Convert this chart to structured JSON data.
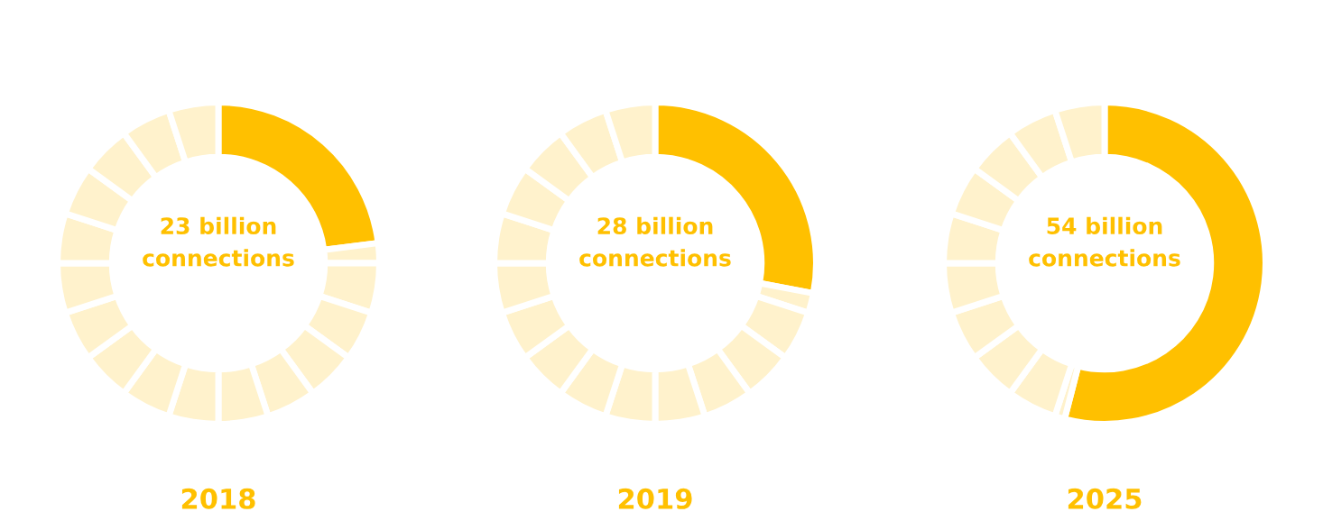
{
  "chart_data": [
    {
      "type": "donut",
      "title": "2018",
      "annotations": [
        "23 billion\nconnections"
      ],
      "categories": [
        null,
        null,
        null,
        null,
        null,
        null,
        null,
        null,
        null,
        null,
        null,
        null,
        null,
        null,
        null,
        null,
        null
      ],
      "values": [
        23,
        2,
        5,
        5,
        5,
        5,
        5,
        5,
        5,
        5,
        5,
        5,
        5,
        5,
        5,
        5,
        5
      ],
      "colors": [
        "#ffc000",
        "#fff2cc",
        "#fff2cc",
        "#fff2cc",
        "#fff2cc",
        "#fff2cc",
        "#fff2cc",
        "#fff2cc",
        "#fff2cc",
        "#fff2cc",
        "#fff2cc",
        "#fff2cc",
        "#fff2cc",
        "#fff2cc",
        "#fff2cc",
        "#fff2cc",
        "#fff2cc"
      ]
    },
    {
      "type": "donut",
      "title": "2019",
      "annotations": [
        "28 billion\nconnections"
      ],
      "categories": [
        null,
        null,
        null,
        null,
        null,
        null,
        null,
        null,
        null,
        null,
        null,
        null,
        null,
        null,
        null,
        null
      ],
      "values": [
        28,
        2,
        5,
        5,
        5,
        5,
        5,
        5,
        5,
        5,
        5,
        5,
        5,
        5,
        5,
        5
      ],
      "colors": [
        "#ffc000",
        "#fff2cc",
        "#fff2cc",
        "#fff2cc",
        "#fff2cc",
        "#fff2cc",
        "#fff2cc",
        "#fff2cc",
        "#fff2cc",
        "#fff2cc",
        "#fff2cc",
        "#fff2cc",
        "#fff2cc",
        "#fff2cc",
        "#fff2cc",
        "#fff2cc"
      ]
    },
    {
      "type": "donut",
      "title": "2025",
      "annotations": [
        "54 billion\nconnections"
      ],
      "categories": [
        null,
        null,
        null,
        null,
        null,
        null,
        null,
        null,
        null,
        null,
        null
      ],
      "values": [
        54,
        1,
        5,
        5,
        5,
        5,
        5,
        5,
        5,
        5,
        5
      ],
      "colors": [
        "#ffc000",
        "#fff2cc",
        "#fff2cc",
        "#fff2cc",
        "#fff2cc",
        "#fff2cc",
        "#fff2cc",
        "#fff2cc",
        "#fff2cc",
        "#fff2cc",
        "#fff2cc"
      ]
    }
  ]
}
